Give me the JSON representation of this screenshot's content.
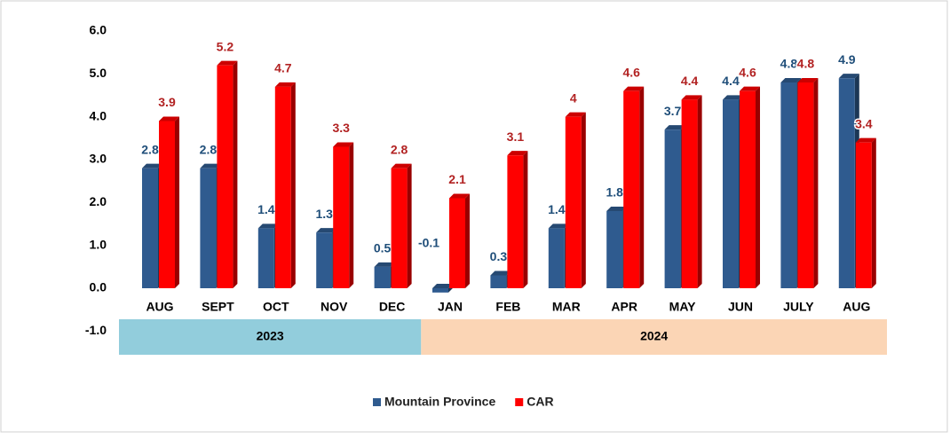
{
  "chart_data": {
    "type": "bar3d",
    "groups": [
      {
        "label": "2023",
        "categories": [
          "AUG",
          "SEPT",
          "OCT",
          "NOV",
          "DEC"
        ],
        "color": "#92cddc"
      },
      {
        "label": "2024",
        "categories": [
          "JAN",
          "FEB",
          "MAR",
          "APR",
          "MAY",
          "JUN",
          "JULY",
          "AUG"
        ],
        "color": "#fbd5b5"
      }
    ],
    "series": [
      {
        "name": "Mountain Province",
        "color": "#2f5b8f",
        "label_color": "#1f4e79",
        "values": [
          2.8,
          2.8,
          1.4,
          1.3,
          0.5,
          -0.1,
          0.3,
          1.4,
          1.8,
          3.7,
          4.4,
          4.8,
          4.9
        ]
      },
      {
        "name": "CAR",
        "color": "#ff0000",
        "label_color": "#b22222",
        "values": [
          3.9,
          5.2,
          4.7,
          3.3,
          2.8,
          2.1,
          3.1,
          4,
          4.6,
          4.4,
          4.6,
          4.8,
          3.4
        ]
      }
    ],
    "ylim": [
      -1,
      6
    ],
    "yticks": [
      {
        "value": -1,
        "label": "-1.0"
      },
      {
        "value": 0,
        "label": "0.0"
      },
      {
        "value": 1,
        "label": "1.0"
      },
      {
        "value": 2,
        "label": "2.0"
      },
      {
        "value": 3,
        "label": "3.0"
      },
      {
        "value": 4,
        "label": "4.0"
      },
      {
        "value": 5,
        "label": "5.0"
      },
      {
        "value": 6,
        "label": "6.0"
      }
    ],
    "legend": "bottom"
  }
}
